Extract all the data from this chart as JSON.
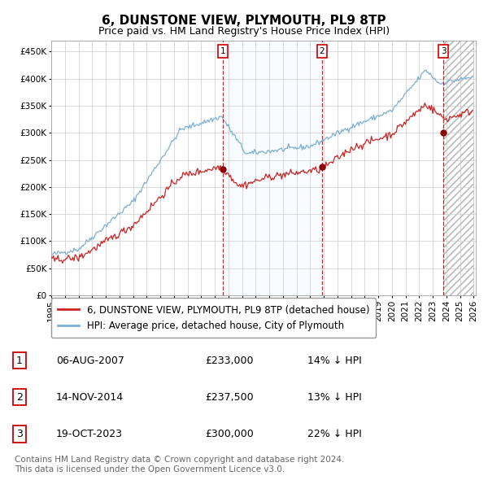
{
  "title": "6, DUNSTONE VIEW, PLYMOUTH, PL9 8TP",
  "subtitle": "Price paid vs. HM Land Registry's House Price Index (HPI)",
  "ylim": [
    0,
    470000
  ],
  "yticks": [
    0,
    50000,
    100000,
    150000,
    200000,
    250000,
    300000,
    350000,
    400000,
    450000
  ],
  "ytick_labels": [
    "£0",
    "£50K",
    "£100K",
    "£150K",
    "£200K",
    "£250K",
    "£300K",
    "£350K",
    "£400K",
    "£450K"
  ],
  "hpi_color": "#7bafd4",
  "hpi_fill_color": "#ddeeff",
  "price_color": "#cc2222",
  "price_dot_color": "#8b0000",
  "vline_color": "#cc0000",
  "sale_dates": [
    "2007-08-06",
    "2014-11-14",
    "2023-10-19"
  ],
  "sale_prices": [
    233000,
    237500,
    300000
  ],
  "sale_labels": [
    "1",
    "2",
    "3"
  ],
  "sale_info": [
    {
      "num": "1",
      "date": "06-AUG-2007",
      "price": "£233,000",
      "pct": "14%",
      "dir": "↓ HPI"
    },
    {
      "num": "2",
      "date": "14-NOV-2014",
      "price": "£237,500",
      "pct": "13%",
      "dir": "↓ HPI"
    },
    {
      "num": "3",
      "date": "19-OCT-2023",
      "price": "£300,000",
      "pct": "22%",
      "dir": "↓ HPI"
    }
  ],
  "legend_price_label": "6, DUNSTONE VIEW, PLYMOUTH, PL9 8TP (detached house)",
  "legend_hpi_label": "HPI: Average price, detached house, City of Plymouth",
  "footer": "Contains HM Land Registry data © Crown copyright and database right 2024.\nThis data is licensed under the Open Government Licence v3.0.",
  "title_fontsize": 11,
  "subtitle_fontsize": 9,
  "tick_fontsize": 7.5,
  "legend_fontsize": 8.5,
  "table_fontsize": 9,
  "footer_fontsize": 7.5
}
